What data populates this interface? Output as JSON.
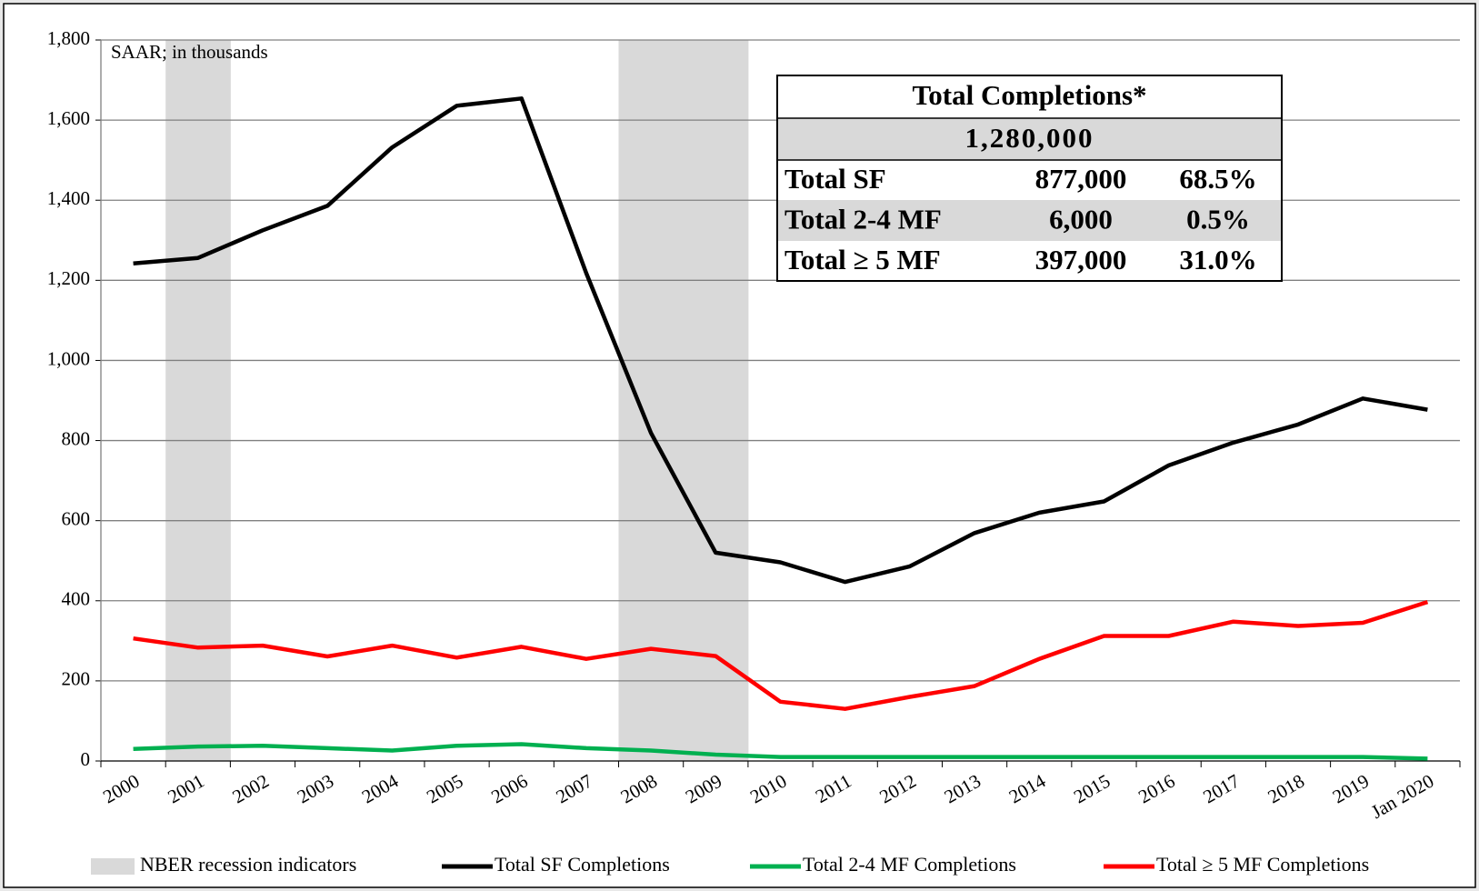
{
  "chart_data": {
    "type": "line",
    "annotation": "SAAR; in thousands",
    "categories": [
      "2000",
      "2001",
      "2002",
      "2003",
      "2004",
      "2005",
      "2006",
      "2007",
      "2008",
      "2009",
      "2010",
      "2011",
      "2012",
      "2013",
      "2014",
      "2015",
      "2016",
      "2017",
      "2018",
      "2019",
      "Jan 2020"
    ],
    "shaded_categories": [
      "2001",
      "2008",
      "2009"
    ],
    "shade_name": "NBER recession indicators",
    "shade_color": "#d9d9d9",
    "series": [
      {
        "name": "Total SF Completions",
        "color": "#000000",
        "values": [
          1242,
          1256,
          1325,
          1386,
          1532,
          1636,
          1654,
          1218,
          819,
          520,
          496,
          447,
          486,
          569,
          620,
          648,
          738,
          795,
          840,
          905,
          877
        ]
      },
      {
        "name": "Total 2-4 MF Completions",
        "color": "#00b050",
        "values": [
          30,
          36,
          38,
          32,
          26,
          38,
          42,
          32,
          26,
          16,
          10,
          10,
          10,
          10,
          10,
          10,
          10,
          10,
          10,
          10,
          6
        ]
      },
      {
        "name": "Total ≥ 5 MF Completions",
        "color": "#ff0000",
        "values": [
          306,
          283,
          288,
          261,
          288,
          258,
          285,
          255,
          280,
          262,
          148,
          130,
          160,
          187,
          255,
          312,
          312,
          348,
          337,
          345,
          397
        ]
      }
    ],
    "ylim": [
      0,
      1800
    ],
    "yticks": [
      0,
      200,
      400,
      600,
      800,
      {
        "value": 1000,
        "label": "1,000"
      },
      {
        "value": 1200,
        "label": "1,200"
      },
      {
        "value": 1400,
        "label": "1,400"
      },
      {
        "value": 1600,
        "label": "1,600"
      },
      {
        "value": 1800,
        "label": "1,800"
      }
    ],
    "grid": true,
    "inset": {
      "title": "Total Completions*",
      "total": "1,280,000",
      "rows": [
        [
          "Total SF",
          "877,000",
          "68.5%"
        ],
        [
          "Total 2-4  MF",
          "6,000",
          "0.5%"
        ],
        [
          "Total  ≥ 5 MF",
          "397,000",
          "31.0%"
        ]
      ]
    }
  }
}
